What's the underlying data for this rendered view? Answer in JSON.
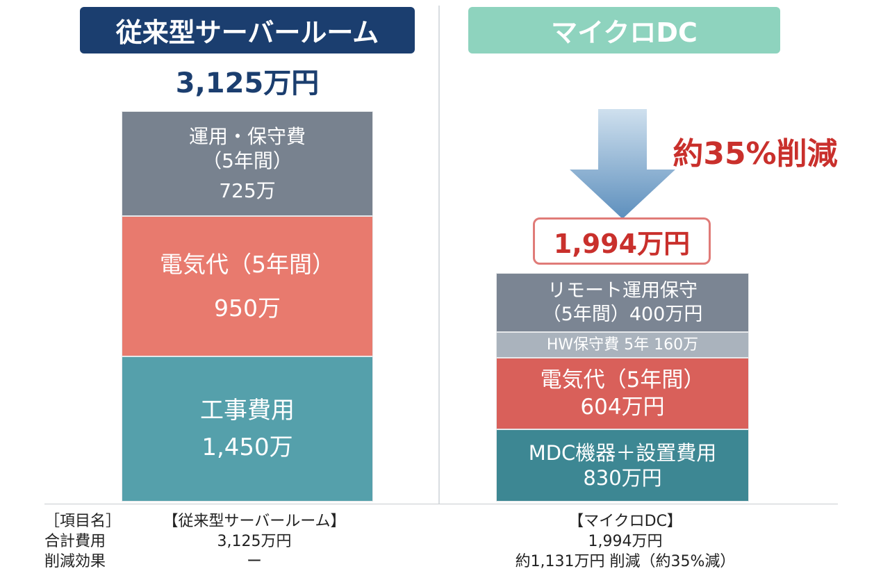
{
  "left": {
    "title": "従来型サーバールーム",
    "total": "3,125万円",
    "segments": {
      "ops": {
        "label_line1": "運用・保守費",
        "label_line2": "（5年間）",
        "value": "725万"
      },
      "power": {
        "label": "電気代（5年間）",
        "value": "950万"
      },
      "construction": {
        "label": "工事費用",
        "value": "1,450万"
      }
    }
  },
  "right": {
    "title": "マイクロDC",
    "reduction": "約35%削減",
    "total": "1,994万円",
    "segments": {
      "remote_ops": {
        "label_line1": "リモート運用保守",
        "label_line2": "（5年間）400万円"
      },
      "hw_maintenance": {
        "label": "HW保守費 5年 160万"
      },
      "power": {
        "label": "電気代（5年間）",
        "value": "604万円"
      },
      "mdc": {
        "label": "MDC機器＋設置費用",
        "value": "830万円"
      }
    }
  },
  "table": {
    "row_labels": [
      "［項目名］",
      "合計費用",
      "削減効果"
    ],
    "left_col": [
      "【従来型サーバールーム】",
      "3,125万円",
      "ー"
    ],
    "right_col": [
      "【マイクロDC】",
      "1,994万円",
      "約1,131万円 削減（約35%減）"
    ]
  },
  "chart_data": [
    {
      "type": "bar",
      "stacked": true,
      "title": "従来型サーバールーム",
      "unit": "万円",
      "total": 3125,
      "series": [
        {
          "name": "工事費用",
          "values": [
            1450
          ],
          "color": "#55a0ab"
        },
        {
          "name": "電気代（5年間）",
          "values": [
            950
          ],
          "color": "#e87a6e"
        },
        {
          "name": "運用・保守費（5年間）",
          "values": [
            725
          ],
          "color": "#78828f"
        }
      ]
    },
    {
      "type": "bar",
      "stacked": true,
      "title": "マイクロDC",
      "unit": "万円",
      "total": 1994,
      "series": [
        {
          "name": "MDC機器＋設置費用",
          "values": [
            830
          ],
          "color": "#3d8793"
        },
        {
          "name": "電気代（5年間）",
          "values": [
            604
          ],
          "color": "#d9605a"
        },
        {
          "name": "HW保守費 5年",
          "values": [
            160
          ],
          "color": "#aab3bd"
        },
        {
          "name": "リモート運用保守（5年間）",
          "values": [
            400
          ],
          "color": "#7b8593"
        }
      ]
    }
  ],
  "colors": {
    "left_title_bg": "#1b3e6f",
    "right_title_bg": "#8ed3be",
    "reduction_red": "#c9302c",
    "arrow": "#6f9cc4"
  }
}
